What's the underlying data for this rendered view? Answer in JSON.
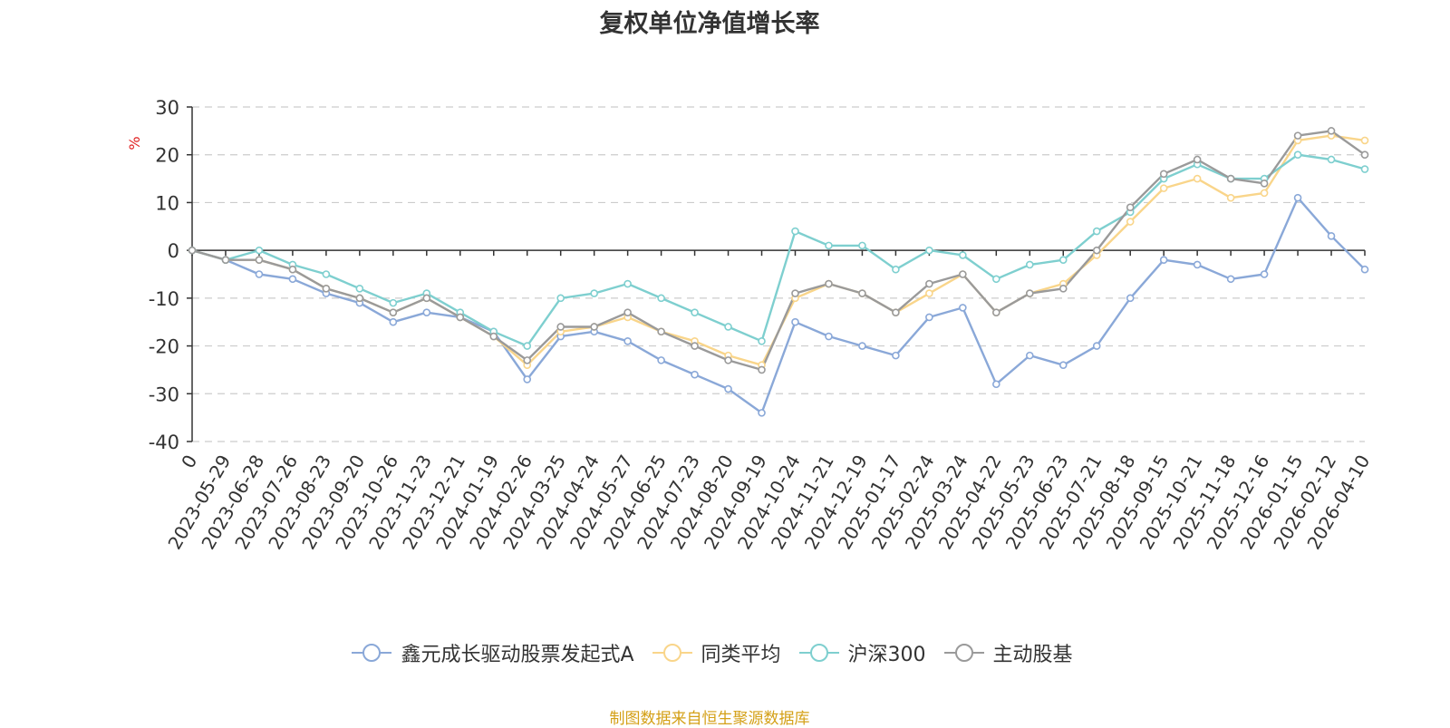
{
  "title": "复权单位净值增长率",
  "source_note": "制图数据来自恒生聚源数据库",
  "chart_data": {
    "type": "line",
    "title": "复权单位净值增长率",
    "ylabel": "%",
    "ylim": [
      -40,
      30
    ],
    "yticks": [
      30,
      20,
      10,
      0,
      -10,
      -20,
      -30,
      -40
    ],
    "grid": true,
    "legend_position": "bottom",
    "categories": [
      "0",
      "2023-05-29",
      "2023-06-28",
      "2023-07-26",
      "2023-08-23",
      "2023-09-20",
      "2023-10-26",
      "2023-11-23",
      "2023-12-21",
      "2024-01-19",
      "2024-02-26",
      "2024-03-25",
      "2024-04-24",
      "2024-05-27",
      "2024-06-25",
      "2024-07-23",
      "2024-08-20",
      "2024-09-19",
      "2024-10-24",
      "2024-11-21",
      "2024-12-19",
      "2025-01-17",
      "2025-02-24",
      "2025-03-24",
      "2025-04-22",
      "2025-05-23",
      "2025-06-23",
      "2025-07-21",
      "2025-08-18",
      "2025-09-15",
      "2025-10-21",
      "2025-11-18",
      "2025-12-16",
      "2026-01-15",
      "2026-02-12",
      "2026-04-10"
    ],
    "series": [
      {
        "name": "鑫元成长驱动股票发起式A",
        "color": "#8aa8d8",
        "values": [
          0,
          -2,
          -5,
          -6,
          -9,
          -11,
          -15,
          -13,
          -14,
          -17,
          -27,
          -18,
          -17,
          -19,
          -23,
          -26,
          -29,
          -34,
          -15,
          -18,
          -20,
          -22,
          -14,
          -12,
          -28,
          -22,
          -24,
          -20,
          -10,
          -2,
          -3,
          -6,
          -5,
          11,
          3,
          -4
        ]
      },
      {
        "name": "同类平均",
        "color": "#f9d58a",
        "values": [
          0,
          -2,
          -2,
          -4,
          -8,
          -10,
          -13,
          -10,
          -14,
          -18,
          -24,
          -17,
          -16,
          -14,
          -17,
          -19,
          -22,
          -24,
          -10,
          -7,
          -9,
          -13,
          -9,
          -5,
          -13,
          -9,
          -7,
          -1,
          6,
          13,
          15,
          11,
          12,
          23,
          24,
          23
        ]
      },
      {
        "name": "沪深300",
        "color": "#7ecfcf",
        "values": [
          0,
          -2,
          0,
          -3,
          -5,
          -8,
          -11,
          -9,
          -13,
          -17,
          -20,
          -10,
          -9,
          -7,
          -10,
          -13,
          -16,
          -19,
          4,
          1,
          1,
          -4,
          0,
          -1,
          -6,
          -3,
          -2,
          4,
          8,
          15,
          18,
          15,
          15,
          20,
          19,
          17
        ]
      },
      {
        "name": "主动股基",
        "color": "#9a9a9a",
        "values": [
          0,
          -2,
          -2,
          -4,
          -8,
          -10,
          -13,
          -10,
          -14,
          -18,
          -23,
          -16,
          -16,
          -13,
          -17,
          -20,
          -23,
          -25,
          -9,
          -7,
          -9,
          -13,
          -7,
          -5,
          -13,
          -9,
          -8,
          0,
          9,
          16,
          19,
          15,
          14,
          24,
          25,
          20
        ]
      }
    ]
  }
}
